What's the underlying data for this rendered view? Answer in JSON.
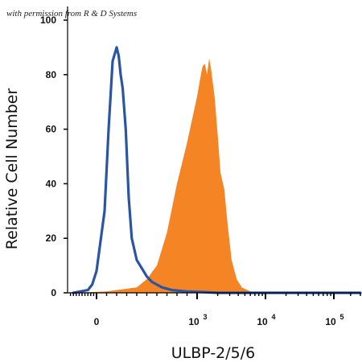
{
  "watermark": "with permission from R & D Systems",
  "chart_data": {
    "type": "area",
    "xlabel": "ULBP-2/5/6",
    "ylabel": "Relative Cell Number",
    "xscale": "biexponential",
    "ylim": [
      0,
      100
    ],
    "grid": false,
    "yticks": [
      "0",
      "20",
      "40",
      "60",
      "80",
      "100"
    ],
    "xticks": [
      {
        "base": "0",
        "exp": ""
      },
      {
        "base": "10",
        "exp": "3"
      },
      {
        "base": "10",
        "exp": "4"
      },
      {
        "base": "10",
        "exp": "5"
      }
    ],
    "series": [
      {
        "style": "outline",
        "color": "#2a55a5",
        "x": [
          -800,
          -300,
          -150,
          0,
          80,
          120,
          160,
          200,
          220,
          240,
          260,
          290,
          320,
          350,
          400,
          450,
          500,
          550,
          650,
          750,
          900,
          1200,
          2000,
          10000,
          100000,
          300000
        ],
        "y": [
          0,
          1,
          3,
          8,
          30,
          60,
          85,
          90,
          87,
          80,
          75,
          60,
          35,
          20,
          12,
          9,
          6,
          4,
          2,
          1,
          0.5,
          0.3,
          0,
          0,
          0,
          0
        ]
      },
      {
        "style": "filled",
        "color": "#f48424",
        "x": [
          -800,
          100,
          400,
          500,
          600,
          700,
          800,
          900,
          1000,
          1100,
          1200,
          1300,
          1400,
          1500,
          1600,
          1800,
          2000,
          2200,
          2500,
          2800,
          3200,
          3800,
          4500,
          6000,
          8000,
          100000,
          300000
        ],
        "y": [
          0,
          0.5,
          2,
          5,
          10,
          22,
          40,
          55,
          72,
          78,
          83,
          84,
          80,
          86,
          82,
          72,
          58,
          44,
          38,
          25,
          12,
          5,
          2,
          0.5,
          0,
          0,
          0
        ]
      }
    ]
  }
}
